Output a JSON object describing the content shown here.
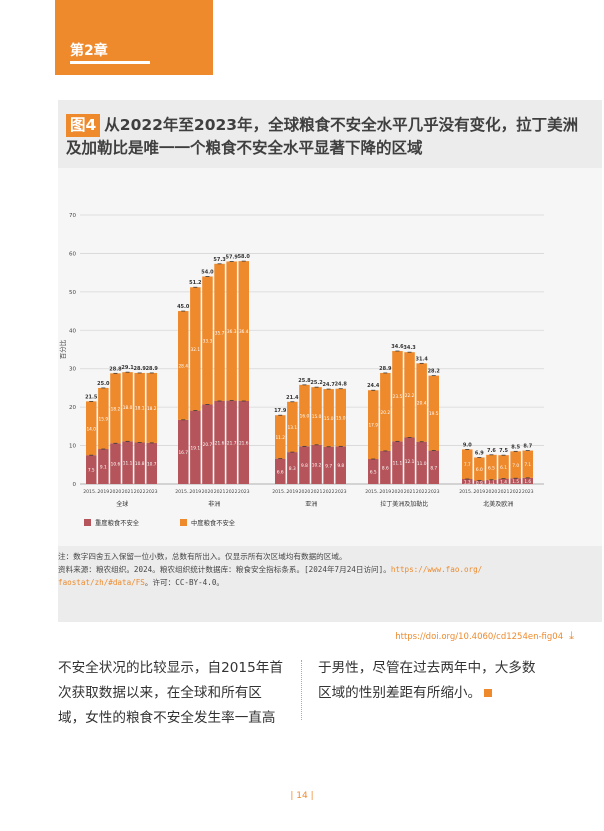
{
  "chapter": {
    "label": "第2章"
  },
  "figure": {
    "label": "图4",
    "title": "从2022年至2023年，全球粮食不安全水平几乎没有变化，拉丁美洲及加勒比是唯一一个粮食不安全水平显著下降的区域"
  },
  "chart_data": {
    "type": "bar",
    "stacked": true,
    "ylabel": "百分比",
    "ylim": [
      0,
      70
    ],
    "yticks": [
      0,
      10,
      20,
      30,
      40,
      50,
      60,
      70
    ],
    "grid": true,
    "legend_position": "bottom-left",
    "years": [
      "2015...",
      "2019",
      "2020",
      "2021",
      "2022",
      "2023"
    ],
    "regions": [
      {
        "name": "全球",
        "total": [
          21.5,
          25.0,
          28.8,
          29.1,
          28.9,
          28.9
        ],
        "severe": [
          7.5,
          9.1,
          10.6,
          11.1,
          10.8,
          10.7
        ],
        "moderate": [
          14.0,
          15.9,
          18.2,
          18.0,
          18.1,
          18.2
        ]
      },
      {
        "name": "非洲",
        "total": [
          45.0,
          51.2,
          54.0,
          57.3,
          57.9,
          58.0
        ],
        "severe": [
          16.7,
          19.1,
          20.7,
          21.6,
          21.7,
          21.6
        ],
        "moderate": [
          28.4,
          32.1,
          33.3,
          35.7,
          36.3,
          36.4
        ]
      },
      {
        "name": "亚洲",
        "total": [
          17.9,
          21.4,
          25.8,
          25.2,
          24.7,
          24.8
        ],
        "severe": [
          6.6,
          8.3,
          9.8,
          10.2,
          9.7,
          9.8
        ],
        "moderate": [
          11.2,
          13.1,
          16.0,
          15.0,
          15.0,
          15.0
        ]
      },
      {
        "name": "拉丁美洲及加勒比",
        "total": [
          24.4,
          28.9,
          34.6,
          34.3,
          31.4,
          28.2
        ],
        "severe": [
          6.5,
          8.6,
          11.1,
          12.1,
          11.0,
          8.7
        ],
        "moderate": [
          17.9,
          20.2,
          23.5,
          22.2,
          20.4,
          19.5
        ]
      },
      {
        "name": "北美及欧洲",
        "total": [
          9.0,
          6.9,
          7.6,
          7.5,
          8.5,
          8.7
        ],
        "severe": [
          1.3,
          0.9,
          1.1,
          1.4,
          1.5,
          1.6
        ],
        "moderate": [
          7.7,
          6.0,
          6.5,
          6.1,
          7.0,
          7.1
        ]
      }
    ],
    "legend": [
      {
        "name": "重度粮食不安全",
        "color": "#b5545a"
      },
      {
        "name": "中度粮食不安全",
        "color": "#ee8a2c"
      }
    ]
  },
  "notes": {
    "line1": "注：数字四舍五入保留一位小数，总数有所出入。仅显示所有次区域均有数据的区域。",
    "line2_prefix": "资料来源：粮农组织。2024。粮农组织统计数据库：粮食安全指标条系。[2024年7月24日访问]。",
    "url_part1": "https://www.fao.org/",
    "url_part2": "faostat/zh/#data/FS",
    "line3_suffix": "。许可：CC-BY-4.0。"
  },
  "doi": "https://doi.org/10.4060/cd1254en-fig04",
  "body": {
    "left": [
      "不安全状况的比较显示，自2015年首",
      "次获取数据以来，在全球和所有区",
      "域，女性的粮食不安全发生率一直高"
    ],
    "right": [
      "于男性，尽管在过去两年中，大多数",
      "区域的性别差距有所缩小。"
    ]
  },
  "page_number": "| 14 |"
}
